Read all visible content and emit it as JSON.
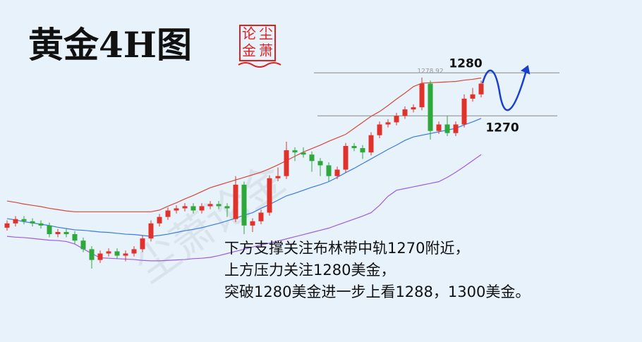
{
  "chart_data": {
    "type": "candlestick",
    "title": "黄金4H图",
    "categories": [
      null,
      null,
      null,
      null,
      null,
      null,
      null,
      null,
      null,
      null,
      null,
      null,
      null,
      null,
      null,
      null,
      null,
      null,
      null,
      null,
      null,
      null,
      null,
      null,
      null,
      null,
      null,
      null,
      null,
      null,
      null,
      null,
      null,
      null,
      null,
      null,
      null,
      null,
      null,
      null,
      null,
      null,
      null,
      null,
      null,
      null,
      null,
      null,
      null,
      null,
      null,
      null,
      null,
      null,
      null,
      null,
      null
    ],
    "open": [
      1244.0,
      1245.0,
      1246.0,
      1245.5,
      1245.0,
      1244.5,
      1242.5,
      1243.0,
      1242.5,
      1241.0,
      1239.0,
      1236.5,
      1238.0,
      1238.5,
      1237.5,
      1238.0,
      1239.0,
      1241.5,
      1245.0,
      1246.5,
      1248.0,
      1248.5,
      1249.0,
      1248.0,
      1249.0,
      1249.5,
      1249.0,
      1246.0,
      1254.0,
      1244.5,
      1245.5,
      1247.5,
      1255.5,
      1256.0,
      1262.0,
      1261.5,
      1261.0,
      1259.5,
      1258.5,
      1256.0,
      1257.5,
      1263.0,
      1262.5,
      1261.5,
      1265.5,
      1268.0,
      1268.5,
      1270.0,
      1271.5,
      1272.0,
      1277.5,
      1266.5,
      1268.0,
      1266.0,
      1268.0,
      1274.0,
      1275.0
    ],
    "high": [
      1245.7,
      1246.7,
      1246.7,
      1246.2,
      1245.7,
      1245.2,
      1243.7,
      1243.7,
      1243.2,
      1241.7,
      1239.7,
      1238.7,
      1239.2,
      1239.2,
      1238.7,
      1239.7,
      1242.2,
      1245.7,
      1247.2,
      1248.7,
      1249.2,
      1249.7,
      1249.7,
      1249.7,
      1250.2,
      1250.2,
      1249.7,
      1256.0,
      1254.7,
      1246.2,
      1248.2,
      1256.2,
      1258.0,
      1264.0,
      1262.7,
      1262.7,
      1261.7,
      1260.2,
      1259.2,
      1258.2,
      1263.7,
      1263.7,
      1263.2,
      1266.2,
      1268.7,
      1269.2,
      1270.7,
      1272.2,
      1272.7,
      1278.92,
      1278.2,
      1268.7,
      1270.0,
      1268.7,
      1275.0,
      1276.5,
      1278.2
    ],
    "low": [
      1243.3,
      1244.3,
      1244.8,
      1244.3,
      1243.8,
      1241.8,
      1241.8,
      1241.8,
      1240.3,
      1238.3,
      1234.5,
      1235.8,
      1237.3,
      1236.8,
      1236.2,
      1237.3,
      1238.3,
      1240.8,
      1244.3,
      1245.8,
      1247.3,
      1247.8,
      1247.3,
      1247.3,
      1248.3,
      1248.3,
      1246.5,
      1245.3,
      1242.5,
      1243.0,
      1244.8,
      1246.8,
      1254.8,
      1255.3,
      1259.5,
      1260.3,
      1257.0,
      1256.0,
      1254.8,
      1255.3,
      1256.8,
      1261.8,
      1260.0,
      1260.8,
      1264.8,
      1267.3,
      1267.8,
      1269.3,
      1270.8,
      1271.3,
      1264.5,
      1265.8,
      1265.3,
      1265.3,
      1267.3,
      1273.3,
      1274.3
    ],
    "close": [
      1245.0,
      1246.0,
      1245.5,
      1245.0,
      1244.5,
      1242.5,
      1243.0,
      1242.5,
      1241.0,
      1239.0,
      1236.5,
      1238.0,
      1238.5,
      1237.5,
      1238.0,
      1239.0,
      1241.5,
      1245.0,
      1246.5,
      1248.0,
      1248.5,
      1249.0,
      1248.0,
      1249.0,
      1249.5,
      1249.0,
      1248.5,
      1254.0,
      1244.5,
      1245.5,
      1247.5,
      1255.5,
      1256.0,
      1262.0,
      1261.5,
      1261.0,
      1259.5,
      1258.5,
      1256.0,
      1257.5,
      1263.0,
      1262.5,
      1261.5,
      1265.5,
      1268.0,
      1268.5,
      1270.0,
      1271.5,
      1272.0,
      1277.5,
      1266.5,
      1268.0,
      1266.0,
      1268.0,
      1274.0,
      1275.0,
      1277.5
    ],
    "up_color": "#e0312a",
    "down_color": "#2ea83a",
    "series": [
      {
        "color": "#d9473a",
        "values": [
          1250.2,
          1249.9,
          1249.5,
          1249.2,
          1248.9,
          1248.5,
          1248.2,
          1247.9,
          1247.7,
          1247.7,
          1247.7,
          1247.7,
          1247.7,
          1247.7,
          1247.7,
          1247.7,
          1247.7,
          1247.7,
          1248.1,
          1249.0,
          1249.8,
          1250.7,
          1251.5,
          1252.4,
          1253.3,
          1253.9,
          1254.5,
          1255.1,
          1255.7,
          1256.3,
          1256.9,
          1257.7,
          1258.6,
          1259.6,
          1260.6,
          1261.6,
          1262.4,
          1263.2,
          1264.1,
          1264.9,
          1265.7,
          1267.1,
          1268.5,
          1269.9,
          1271.0,
          1272.4,
          1273.9,
          1275.3,
          1276.8,
          1277.6,
          1277.7,
          1277.8,
          1277.9,
          1278.0,
          1278.3,
          1278.5,
          1278.8
        ]
      },
      {
        "color": "#3b7be0",
        "values": [
          1246.1,
          1245.8,
          1245.4,
          1245.1,
          1244.8,
          1244.5,
          1244.1,
          1243.8,
          1243.5,
          1243.4,
          1243.2,
          1243.0,
          1242.9,
          1242.7,
          1242.5,
          1242.4,
          1242.2,
          1242.0,
          1242.2,
          1242.5,
          1242.9,
          1243.3,
          1243.6,
          1244.0,
          1244.5,
          1245.0,
          1245.6,
          1246.2,
          1246.9,
          1247.5,
          1248.5,
          1249.4,
          1250.4,
          1251.4,
          1252.0,
          1252.7,
          1253.4,
          1254.0,
          1254.7,
          1255.7,
          1256.8,
          1257.8,
          1258.9,
          1260.0,
          1261.1,
          1262.2,
          1263.2,
          1264.3,
          1265.1,
          1265.5,
          1265.9,
          1266.3,
          1266.7,
          1267.1,
          1267.9,
          1268.6,
          1269.4
        ]
      },
      {
        "color": "#a05ce0",
        "values": [
          1242.0,
          1241.8,
          1241.7,
          1241.5,
          1241.3,
          1241.1,
          1241.0,
          1240.8,
          1240.2,
          1239.1,
          1238.0,
          1237.0,
          1236.9,
          1236.8,
          1236.7,
          1236.6,
          1236.4,
          1236.3,
          1236.3,
          1236.4,
          1236.5,
          1236.6,
          1236.8,
          1236.9,
          1237.1,
          1237.5,
          1238.0,
          1238.5,
          1239.0,
          1239.5,
          1240.0,
          1240.4,
          1240.9,
          1241.4,
          1241.9,
          1242.4,
          1242.9,
          1243.4,
          1243.9,
          1244.6,
          1245.3,
          1246.0,
          1246.7,
          1247.5,
          1249.2,
          1251.3,
          1252.7,
          1253.1,
          1253.5,
          1253.9,
          1254.3,
          1254.7,
          1255.7,
          1256.9,
          1258.2,
          1259.6,
          1261.0
        ]
      }
    ],
    "ylim": [
      1233,
      1283
    ],
    "hlines": [
      1280,
      1270
    ],
    "high_label": 1278.92
  },
  "logo": [
    "论",
    "尘",
    "金",
    "萧"
  ],
  "watermark": "尘萧论金",
  "notes": [
    "下方支撑关注布林带中轨1270附近，",
    "上方压力关注1280美金，",
    "突破1280美金进一步上看1288，1300美金。"
  ]
}
